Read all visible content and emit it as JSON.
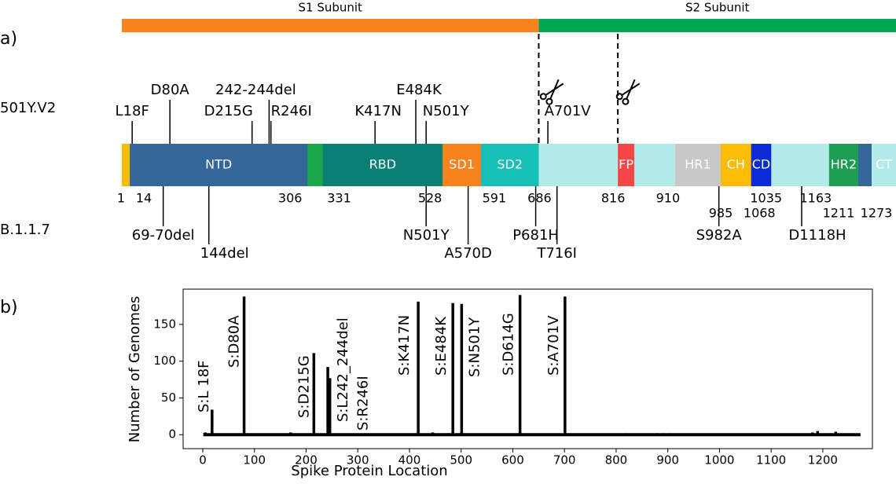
{
  "panel_a": {
    "label": "a)",
    "subunits": [
      {
        "label": "S1 Subunit",
        "color": "#f7831f",
        "start": 1,
        "end": 686
      },
      {
        "label": "S2 Subunit",
        "color": "#00a651",
        "start": 686,
        "end": 1273
      }
    ],
    "domains": [
      {
        "start": 1,
        "end": 14,
        "color": "#fbbc05"
      },
      {
        "label": "NTD",
        "start": 14,
        "end": 306,
        "color": "#336699"
      },
      {
        "start": 306,
        "end": 331,
        "color": "#1aa64a"
      },
      {
        "label": "RBD",
        "start": 331,
        "end": 528,
        "color": "#077f74"
      },
      {
        "label": "SD1",
        "start": 528,
        "end": 591,
        "color": "#f7831f"
      },
      {
        "label": "SD2",
        "start": 591,
        "end": 686,
        "color": "#16c0b8"
      },
      {
        "start": 686,
        "end": 816,
        "color": "#b3ebeb"
      },
      {
        "label": "FP",
        "start": 816,
        "end": 843,
        "color": "#f54646"
      },
      {
        "start": 843,
        "end": 910,
        "color": "#b3ebeb"
      },
      {
        "label": "HR1",
        "start": 910,
        "end": 985,
        "color": "#c8c8c8"
      },
      {
        "label": "CH",
        "start": 985,
        "end": 1035,
        "color": "#fbbc05"
      },
      {
        "label": "CD",
        "start": 1035,
        "end": 1068,
        "color": "#0a2bd6"
      },
      {
        "start": 1068,
        "end": 1163,
        "color": "#b3ebeb"
      },
      {
        "label": "HR2",
        "start": 1163,
        "end": 1211,
        "color": "#1e9e52"
      },
      {
        "start": 1211,
        "end": 1233,
        "color": "#336699"
      },
      {
        "label": "CT",
        "start": 1233,
        "end": 1273,
        "color": "#b3ebeb"
      }
    ],
    "boundaries": [
      1,
      14,
      306,
      331,
      528,
      591,
      686,
      816,
      910,
      985,
      1035,
      1068,
      1163,
      1211,
      1273
    ],
    "cleavage_sites": [
      686,
      816
    ],
    "variants": [
      {
        "name": "501Y.V2",
        "mutations": [
          {
            "label": "L18F",
            "residue": 18
          },
          {
            "label": "D80A",
            "residue": 80
          },
          {
            "label": "D215G",
            "residue": 215
          },
          {
            "label": "242-244del",
            "residue": 243
          },
          {
            "label": "R246I",
            "residue": 246
          },
          {
            "label": "K417N",
            "residue": 417
          },
          {
            "label": "E484K",
            "residue": 484
          },
          {
            "label": "N501Y",
            "residue": 501
          },
          {
            "label": "A701V",
            "residue": 701
          }
        ]
      },
      {
        "name": "B.1.1.7",
        "mutations": [
          {
            "label": "69-70del",
            "residue": 69
          },
          {
            "label": "144del",
            "residue": 144
          },
          {
            "label": "N501Y",
            "residue": 501
          },
          {
            "label": "A570D",
            "residue": 570
          },
          {
            "label": "P681H",
            "residue": 681
          },
          {
            "label": "T716I",
            "residue": 716
          },
          {
            "label": "S982A",
            "residue": 982
          },
          {
            "label": "D1118H",
            "residue": 1118
          }
        ]
      }
    ]
  },
  "panel_b_label": "b)",
  "chart_data": {
    "type": "stem",
    "xlabel": "Spike Protein Location",
    "ylabel": "Number of Genomes",
    "color": "#000000",
    "x": [
      1,
      5,
      18,
      80,
      170,
      215,
      242,
      246,
      417,
      445,
      475,
      484,
      501,
      614,
      701,
      820,
      880,
      890,
      905,
      1180,
      1190,
      1225,
      1273
    ],
    "values": [
      0,
      3,
      34,
      188,
      3,
      111,
      92,
      77,
      181,
      3,
      2,
      179,
      178,
      190,
      188,
      2,
      2,
      2,
      2,
      3,
      5,
      4,
      0
    ],
    "xlim": [
      -38,
      1296
    ],
    "ylim": [
      -19,
      198
    ],
    "xticks": [
      0,
      100,
      200,
      300,
      400,
      500,
      600,
      700,
      800,
      900,
      1000,
      1100,
      1200
    ],
    "yticks": [
      0,
      50,
      100,
      150
    ],
    "annotations": [
      {
        "text": "S:L 18F",
        "x": 18
      },
      {
        "text": "S:D80A",
        "x": 80
      },
      {
        "text": "S:D215G",
        "x": 215
      },
      {
        "text": "S:L242_244del",
        "x": 242
      },
      {
        "text": "S:R246I",
        "x": 246
      },
      {
        "text": "S:K417N",
        "x": 417
      },
      {
        "text": "S:E484K",
        "x": 484
      },
      {
        "text": "S:N501Y",
        "x": 501
      },
      {
        "text": "S:D614G",
        "x": 614
      },
      {
        "text": "S:A701V",
        "x": 701
      }
    ]
  }
}
